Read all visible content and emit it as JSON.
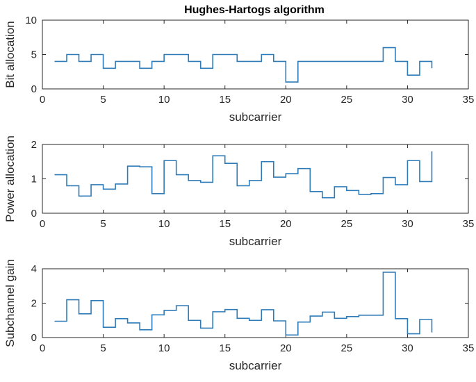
{
  "figure_title": "Hughes-Hartogs algorithm",
  "line_color": "#2e7bb8",
  "axis_color": "#262626",
  "chart_data": [
    {
      "type": "line",
      "step": true,
      "title": "Hughes-Hartogs algorithm",
      "xlabel": "subcarrier",
      "ylabel": "Bit allocation",
      "xlim": [
        0,
        35
      ],
      "ylim": [
        0,
        10
      ],
      "xticks": [
        0,
        5,
        10,
        15,
        20,
        25,
        30,
        35
      ],
      "yticks": [
        0,
        5,
        10
      ],
      "grid": false,
      "x": [
        1,
        2,
        3,
        4,
        5,
        6,
        7,
        8,
        9,
        10,
        11,
        12,
        13,
        14,
        15,
        16,
        17,
        18,
        19,
        20,
        21,
        22,
        23,
        24,
        25,
        26,
        27,
        28,
        29,
        30,
        31,
        32
      ],
      "values": [
        4,
        5,
        4,
        5,
        3,
        4,
        4,
        3,
        4,
        5,
        5,
        4,
        3,
        5,
        5,
        4,
        4,
        5,
        4,
        1,
        4,
        4,
        4,
        4,
        4,
        4,
        4,
        6,
        4,
        2,
        4,
        3
      ]
    },
    {
      "type": "line",
      "step": true,
      "title": "",
      "xlabel": "subcarrier",
      "ylabel": "Power allocation",
      "xlim": [
        0,
        35
      ],
      "ylim": [
        0,
        2
      ],
      "xticks": [
        0,
        5,
        10,
        15,
        20,
        25,
        30,
        35
      ],
      "yticks": [
        0,
        1,
        2
      ],
      "grid": false,
      "x": [
        1,
        2,
        3,
        4,
        5,
        6,
        7,
        8,
        9,
        10,
        11,
        12,
        13,
        14,
        15,
        16,
        17,
        18,
        19,
        20,
        21,
        22,
        23,
        24,
        25,
        26,
        27,
        28,
        29,
        30,
        31,
        32
      ],
      "values": [
        1.12,
        0.8,
        0.5,
        0.83,
        0.7,
        0.85,
        1.37,
        1.35,
        0.57,
        1.53,
        1.12,
        0.95,
        0.9,
        1.67,
        1.45,
        0.8,
        0.95,
        1.5,
        1.05,
        1.15,
        1.3,
        0.63,
        0.45,
        0.77,
        0.66,
        0.55,
        0.57,
        1.04,
        0.83,
        1.53,
        0.92,
        1.8
      ]
    },
    {
      "type": "line",
      "step": true,
      "title": "",
      "xlabel": "subcarrier",
      "ylabel": "Subchannel gain",
      "xlim": [
        0,
        35
      ],
      "ylim": [
        0,
        4
      ],
      "xticks": [
        0,
        5,
        10,
        15,
        20,
        25,
        30,
        35
      ],
      "yticks": [
        0,
        2,
        4
      ],
      "grid": false,
      "x": [
        1,
        2,
        3,
        4,
        5,
        6,
        7,
        8,
        9,
        10,
        11,
        12,
        13,
        14,
        15,
        16,
        17,
        18,
        19,
        20,
        21,
        22,
        23,
        24,
        25,
        26,
        27,
        28,
        29,
        30,
        31,
        32
      ],
      "values": [
        0.95,
        2.2,
        1.38,
        2.15,
        0.6,
        1.1,
        0.85,
        0.45,
        1.32,
        1.58,
        1.85,
        1.0,
        0.55,
        1.5,
        1.63,
        1.12,
        1.0,
        1.62,
        0.97,
        0.15,
        0.9,
        1.25,
        1.48,
        1.12,
        1.22,
        1.3,
        1.3,
        3.8,
        1.1,
        0.22,
        1.05,
        0.3
      ]
    }
  ]
}
